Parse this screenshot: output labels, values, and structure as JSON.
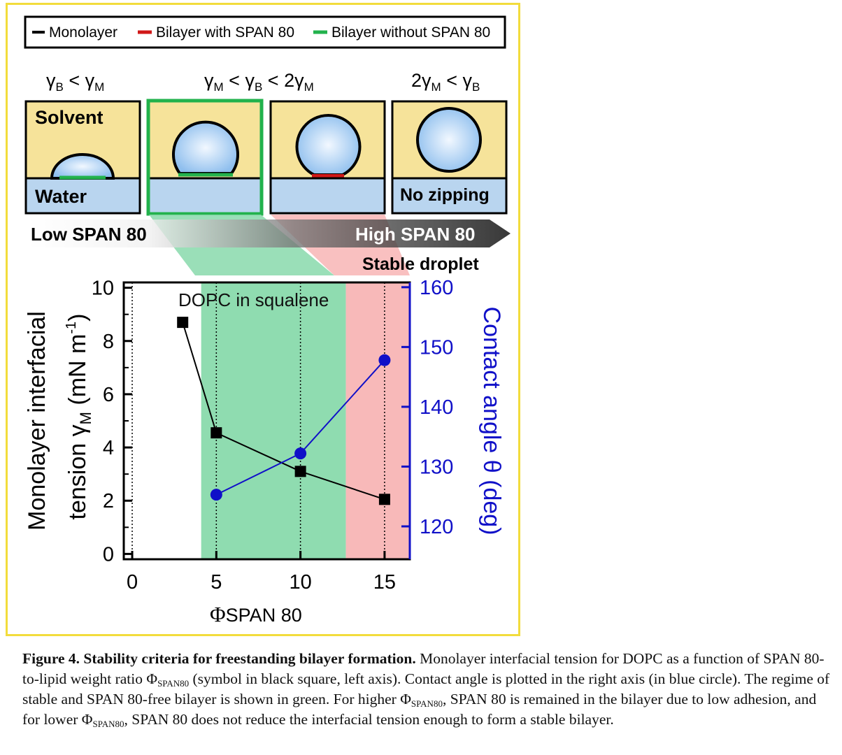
{
  "legend": {
    "items": [
      {
        "label": "Monolayer",
        "color": "#000000"
      },
      {
        "label": "Bilayer with SPAN 80",
        "color": "#d01818"
      },
      {
        "label": "Bilayer without SPAN 80",
        "color": "#22b24c"
      }
    ]
  },
  "regimes": {
    "cond1": {
      "pre": "γ",
      "s1": "B",
      "mid": " < γ",
      "s2": "M",
      "post": ""
    },
    "cond2": {
      "pre": "γ",
      "s1": "M",
      "mid": " < γ",
      "s2": "B",
      "mid2": " < 2γ",
      "s3": "M"
    },
    "cond3": {
      "pre": "2γ",
      "s1": "M",
      "mid": " < γ",
      "s2": "B"
    }
  },
  "panels": {
    "solvent": "Solvent",
    "water": "Water",
    "no_zipping": "No zipping"
  },
  "span_bar": {
    "low": "Low SPAN 80",
    "high": "High SPAN 80",
    "stable": "Stable droplet"
  },
  "colors": {
    "solvent": "#f6e39a",
    "water": "#b9d5ef",
    "droplet": "#a9cdf0",
    "green_region": "#8fdcb0",
    "red_region": "#f8b9b9",
    "monolayer": "#000000",
    "contact_angle": "#1010c8",
    "frame": "#f2dc3c"
  },
  "chart_data": {
    "type": "scatter",
    "annotation": "DOPC in squalene",
    "xlabel_sym": "Φ",
    "xlabel_sub": "SPAN 80",
    "ylabel_left": {
      "line1": "Monolayer interfacial",
      "line2_pre": "tension γ",
      "line2_sub": "M",
      "line2_post": " (mN m",
      "line2_sup": "-1",
      "line2_end": ")"
    },
    "ylabel_right": "Contact angle θ  (deg)",
    "xlim": [
      -0.5,
      16.5
    ],
    "ylim_left": [
      -0.2,
      10.2
    ],
    "ylim_right": [
      114.5,
      160.8
    ],
    "xticks": [
      "0",
      "5",
      "10",
      "15"
    ],
    "xtick_values": [
      0,
      5,
      10,
      15
    ],
    "yticks_left": [
      "0",
      "2",
      "4",
      "6",
      "8",
      "10"
    ],
    "ytick_left_values": [
      0,
      2,
      4,
      6,
      8,
      10
    ],
    "yticks_right": [
      "120",
      "130",
      "140",
      "150",
      "160"
    ],
    "ytick_right_values": [
      120,
      130,
      140,
      150,
      160
    ],
    "regions": [
      {
        "name": "green",
        "x_range": [
          4.1,
          12.7
        ]
      },
      {
        "name": "red",
        "x_range": [
          12.7,
          16.5
        ]
      }
    ],
    "vlines_dotted": [
      0,
      5,
      10,
      15
    ],
    "series": [
      {
        "axis": "left",
        "marker": "square",
        "x": [
          3,
          5,
          10,
          15
        ],
        "y": [
          8.7,
          4.55,
          3.1,
          2.05
        ]
      },
      {
        "axis": "right",
        "marker": "circle",
        "x": [
          5,
          10,
          15
        ],
        "y": [
          125.3,
          132.2,
          147.8
        ]
      }
    ]
  },
  "caption": {
    "fig_label": "Figure 4.",
    "fig_title": "Stability criteria for freestanding bilayer formation.",
    "p1": " Monolayer interfacial tension for DOPC as a function of SPAN 80-to-lipid weight ratio Φ",
    "sub1": "SPAN80",
    "p2": " (symbol in black square, left axis). Contact angle is plotted in the right axis (in blue circle). The regime of stable and SPAN 80-free bilayer is shown in green. For higher Φ",
    "sub2": "SPAN80",
    "p3": ", SPAN 80 is remained in the bilayer due to low adhesion, and for lower Φ",
    "sub3": "SPAN80",
    "p4": ", SPAN 80 does not reduce the interfacial tension enough to form a stable bilayer."
  }
}
